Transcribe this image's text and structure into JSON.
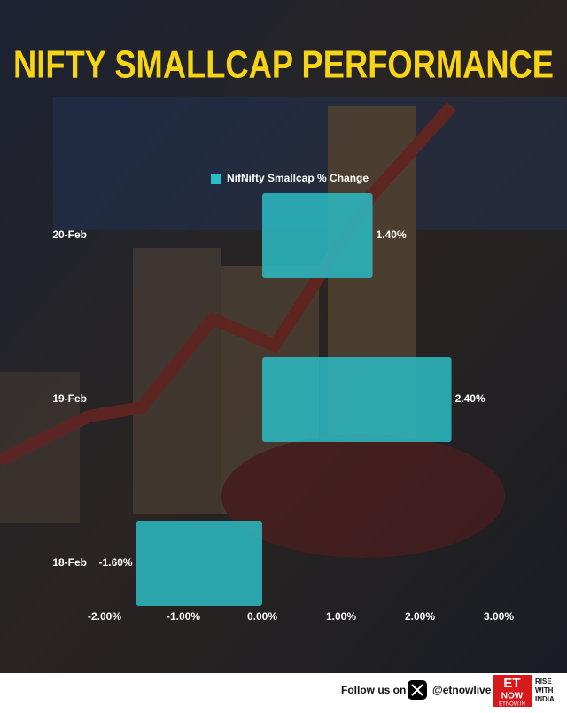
{
  "chart_data": {
    "type": "bar",
    "orientation": "horizontal",
    "title": "NIFTY SMALLCAP PERFORMANCE",
    "categories": [
      "20-Feb",
      "19-Feb",
      "18-Feb"
    ],
    "series": [
      {
        "name": "NifNifty Smallcap % Change",
        "color": "#2bbcc4",
        "values": [
          1.4,
          2.4,
          -1.6
        ],
        "value_labels": [
          "1.40%",
          "2.40%",
          "-1.60%"
        ]
      }
    ],
    "xlim": [
      -2,
      3
    ],
    "xticks": [
      {
        "value": -2,
        "label": "-2.00%"
      },
      {
        "value": -1,
        "label": "-1.00%"
      },
      {
        "value": 0,
        "label": "0.00%"
      },
      {
        "value": 1,
        "label": "1.00%"
      },
      {
        "value": 2,
        "label": "2.00%"
      },
      {
        "value": 3,
        "label": "3.00%"
      }
    ],
    "title_color": "#f7d417"
  },
  "footer": {
    "follow": "Follow us on",
    "handle": "@etnowlive",
    "logo_top": "ET",
    "logo_bottom": "NOW",
    "logo_url": "ETNOW.IN",
    "tagline": [
      "RISE",
      "WITH",
      "INDIA"
    ]
  }
}
